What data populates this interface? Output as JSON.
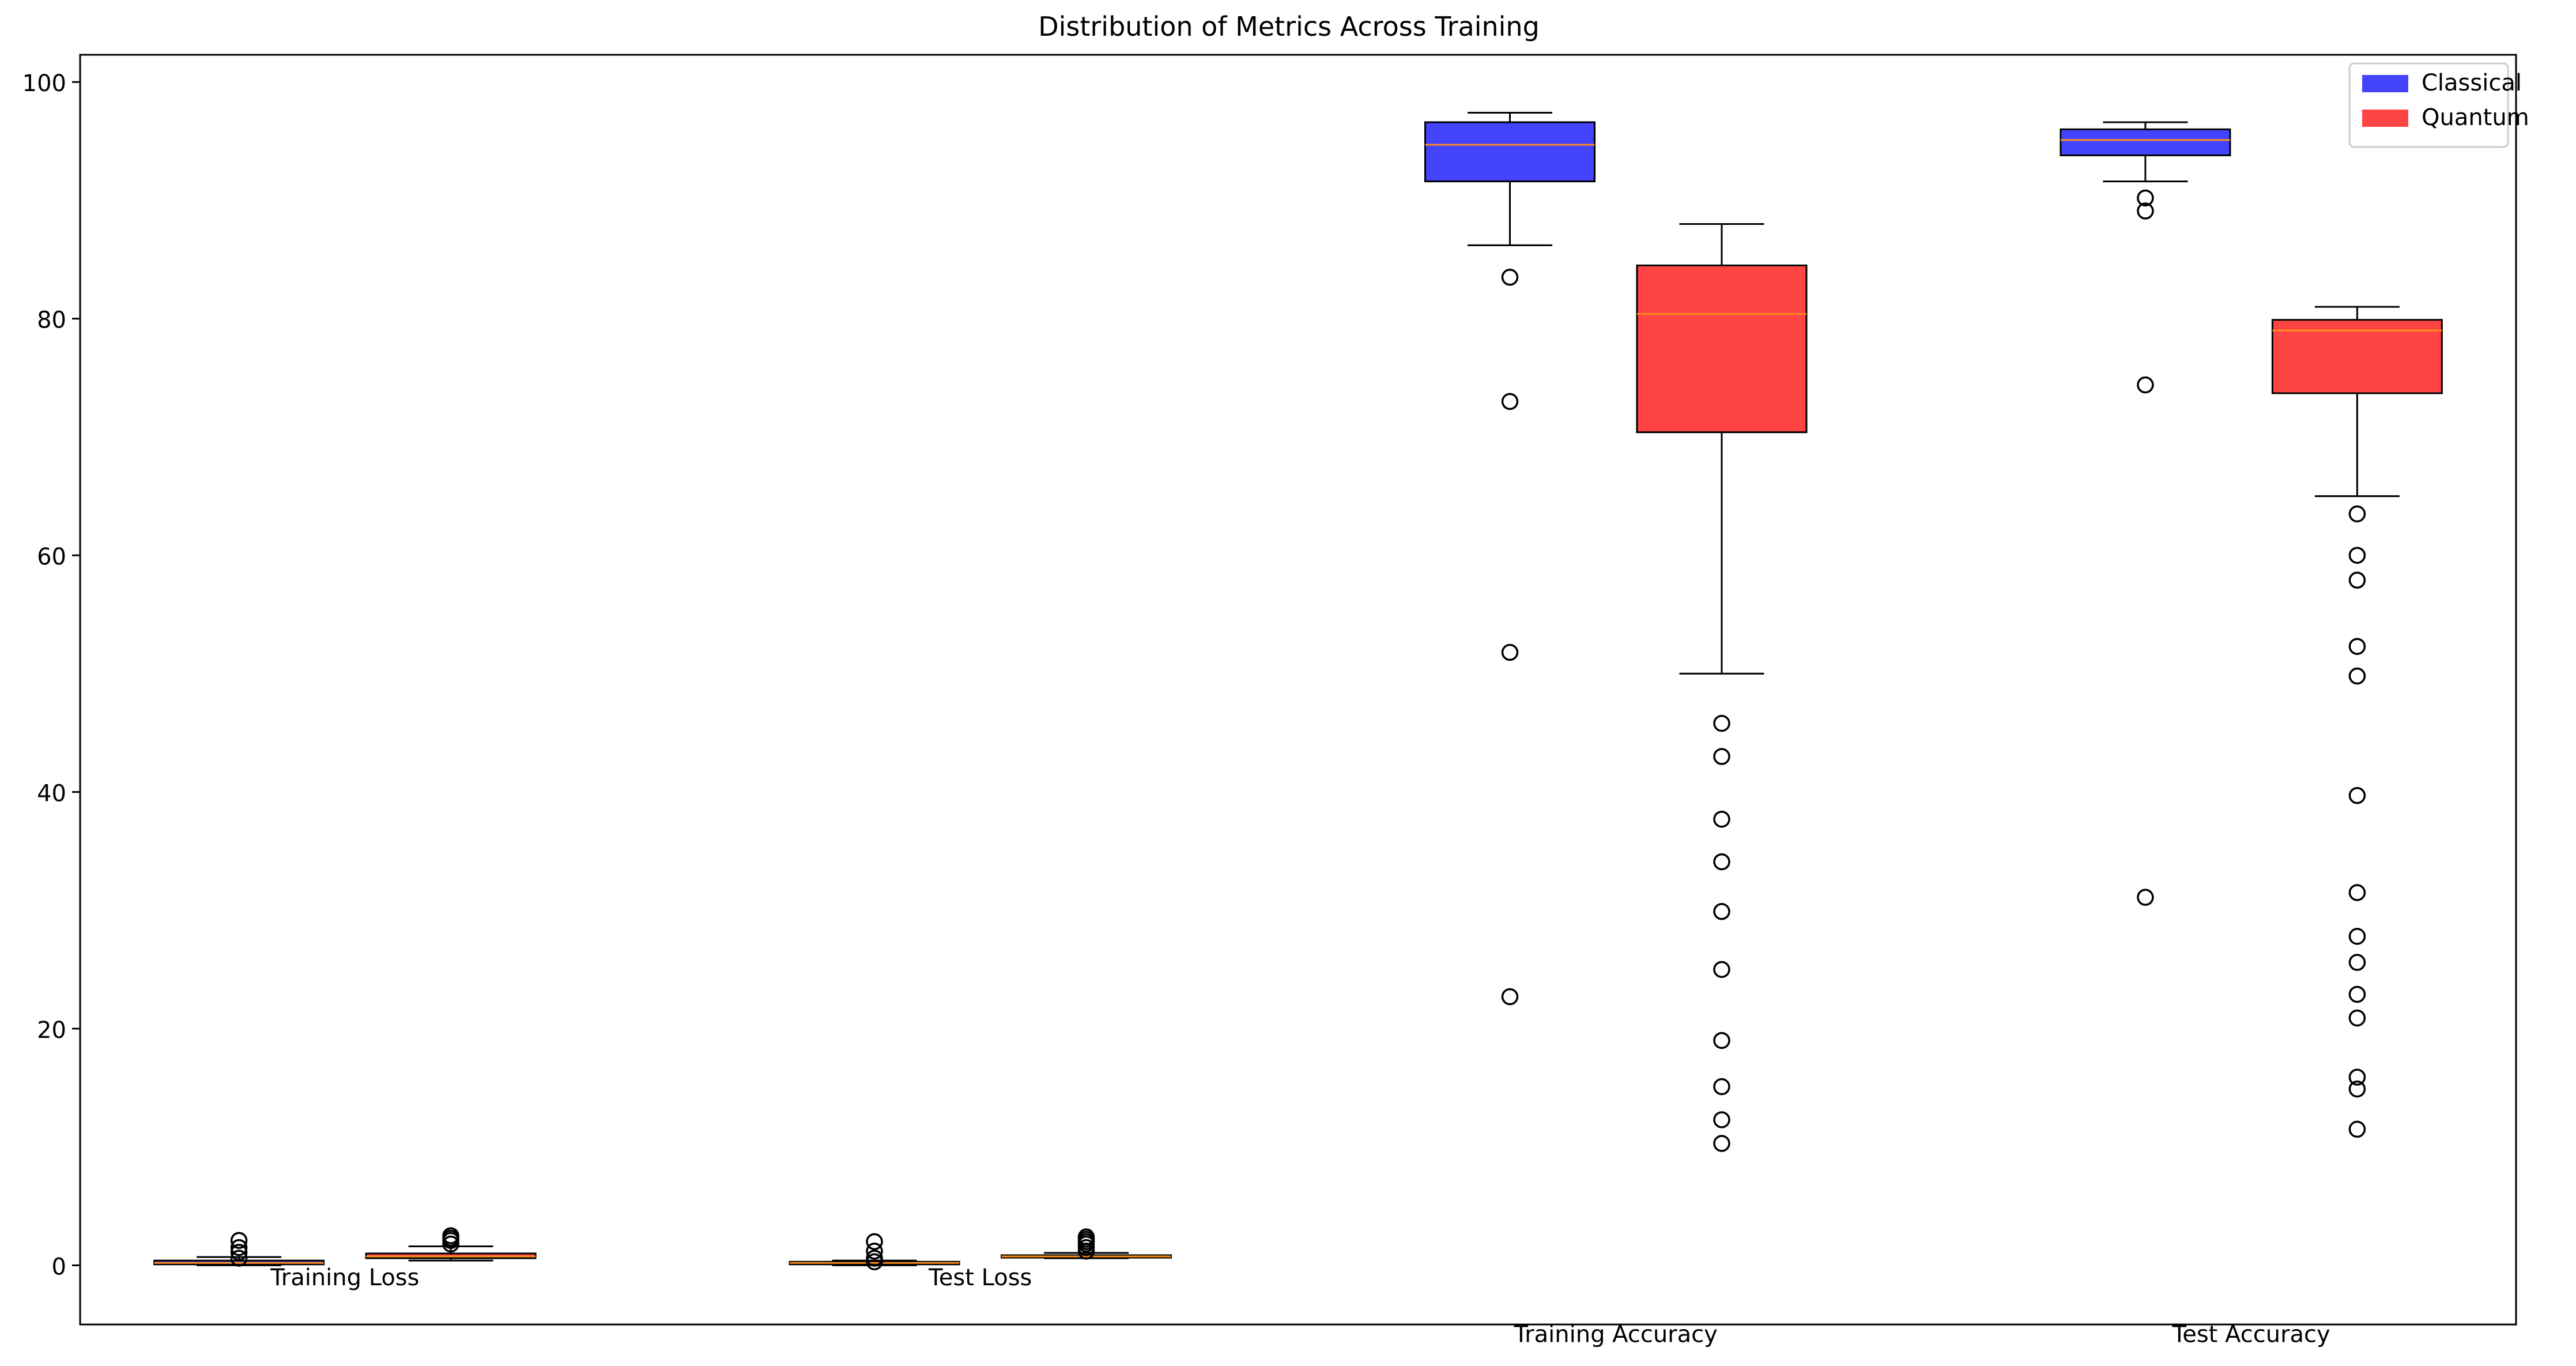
{
  "chart_data": {
    "type": "box",
    "title": "Distribution of Metrics Across Training",
    "xlabel": "",
    "ylabel": "",
    "ylim": [
      -5,
      102.3
    ],
    "yticks": [
      0,
      20,
      40,
      60,
      80,
      100
    ],
    "grid": false,
    "legend_position": "top-right",
    "categories": [
      "Training Loss",
      "Test Loss",
      "Training Accuracy",
      "Test Accuracy"
    ],
    "series": [
      {
        "name": "Classical",
        "color": "#4444ff",
        "boxes": [
          {
            "category": "Training Loss",
            "x": 0.2,
            "whisker_low": 0.0,
            "q1": 0.08,
            "median": 0.2,
            "q3": 0.4,
            "whisker_high": 0.7,
            "outliers": [
              0.6,
              1.1,
              1.5,
              2.1
            ]
          },
          {
            "category": "Test Loss",
            "x": 2.6,
            "whisker_low": 0.0,
            "q1": 0.08,
            "median": 0.2,
            "q3": 0.3,
            "whisker_high": 0.4,
            "outliers": [
              0.3,
              0.6,
              1.2,
              2.0
            ]
          },
          {
            "category": "Training Accuracy",
            "x": 5.0,
            "whisker_low": 86.2,
            "q1": 91.6,
            "median": 94.7,
            "q3": 96.6,
            "whisker_high": 97.4,
            "outliers": [
              83.5,
              73.0,
              51.8,
              22.7
            ]
          },
          {
            "category": "Test Accuracy",
            "x": 7.4,
            "whisker_low": 91.6,
            "q1": 93.8,
            "median": 95.1,
            "q3": 96.0,
            "whisker_high": 96.6,
            "outliers": [
              90.2,
              89.1,
              74.4,
              31.1
            ]
          }
        ]
      },
      {
        "name": "Quantum",
        "color": "#ff4444",
        "boxes": [
          {
            "category": "Training Loss",
            "x": 1.0,
            "whisker_low": 0.4,
            "q1": 0.6,
            "median": 0.75,
            "q3": 1.0,
            "whisker_high": 1.6,
            "outliers": [
              1.8,
              2.1,
              2.3,
              2.5
            ]
          },
          {
            "category": "Test Loss",
            "x": 3.4,
            "whisker_low": 0.6,
            "q1": 0.65,
            "median": 0.75,
            "q3": 0.85,
            "whisker_high": 1.05,
            "outliers": [
              1.2,
              1.5,
              1.8,
              2.0,
              2.2,
              2.4
            ]
          },
          {
            "category": "Training Accuracy",
            "x": 5.8,
            "whisker_low": 50.0,
            "q1": 70.4,
            "median": 80.4,
            "q3": 84.5,
            "whisker_high": 88.0,
            "outliers": [
              45.8,
              43.0,
              37.7,
              34.1,
              29.9,
              25.0,
              19.0,
              15.1,
              12.3,
              10.3
            ]
          },
          {
            "category": "Test Accuracy",
            "x": 8.2,
            "whisker_low": 65.0,
            "q1": 73.7,
            "median": 79.0,
            "q3": 79.9,
            "whisker_high": 81.0,
            "outliers": [
              63.5,
              60.0,
              57.9,
              52.3,
              49.8,
              39.7,
              31.5,
              27.8,
              25.6,
              22.9,
              20.9,
              15.9,
              14.9,
              11.5
            ]
          }
        ]
      }
    ],
    "category_labels": [
      {
        "text": "Training Loss",
        "x": 0.6,
        "y": -1
      },
      {
        "text": "Test Loss",
        "x": 3.0,
        "y": -1
      },
      {
        "text": "Training Accuracy",
        "x": 5.4,
        "y": -5.8
      },
      {
        "text": "Test Accuracy",
        "x": 7.8,
        "y": -5.8
      }
    ]
  }
}
